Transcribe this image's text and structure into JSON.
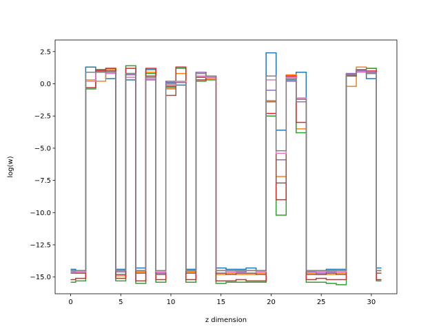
{
  "chart_data": {
    "type": "line",
    "drawstyle": "steps-mid",
    "title": "",
    "xlabel": "z dimension",
    "ylabel": "log(w)",
    "xlim": [
      -1.55,
      32.55
    ],
    "ylim": [
      -16.3,
      3.4
    ],
    "xticks": [
      0,
      5,
      10,
      15,
      20,
      25,
      30
    ],
    "yticks": [
      2.5,
      0.0,
      -2.5,
      -5.0,
      -7.5,
      -10.0,
      -12.5,
      -15.0
    ],
    "ytick_labels": [
      "2.5",
      "0.0",
      "−2.5",
      "−5.0",
      "−7.5",
      "−10.0",
      "−12.5",
      "−15.0"
    ],
    "grid": false,
    "legend": false,
    "x": [
      0,
      1,
      2,
      3,
      4,
      5,
      6,
      7,
      8,
      9,
      10,
      11,
      12,
      13,
      14,
      15,
      16,
      17,
      18,
      19,
      20,
      21,
      22,
      23,
      24,
      25,
      26,
      27,
      28,
      29,
      30,
      31
    ],
    "series": [
      {
        "color": "#1f77b4",
        "values": [
          -14.4,
          -14.5,
          1.3,
          1.0,
          0.4,
          -14.4,
          0.3,
          -14.3,
          1.1,
          -14.6,
          0.1,
          -0.1,
          -14.4,
          0.9,
          0.6,
          -14.3,
          -14.4,
          -14.4,
          -14.3,
          -14.5,
          2.4,
          -3.6,
          0.3,
          0.9,
          -14.5,
          -14.5,
          -14.4,
          -14.4,
          0.8,
          1.1,
          0.4,
          -14.3
        ]
      },
      {
        "color": "#ff7f0e",
        "values": [
          -14.6,
          -14.7,
          0.3,
          0.2,
          1.1,
          -14.9,
          0.8,
          -14.6,
          0.9,
          -14.7,
          -0.4,
          0.8,
          -14.6,
          0.5,
          0.4,
          -14.8,
          -14.7,
          -14.8,
          -14.8,
          -14.7,
          -1.3,
          -7.2,
          0.7,
          -3.5,
          -14.7,
          -14.8,
          -14.8,
          -14.7,
          -0.2,
          1.3,
          1.2,
          -14.5
        ]
      },
      {
        "color": "#2ca02c",
        "values": [
          -15.4,
          -15.3,
          -0.4,
          1.1,
          1.2,
          -15.3,
          1.4,
          -15.5,
          0.8,
          -15.4,
          -0.3,
          1.2,
          -15.4,
          0.2,
          0.3,
          -15.5,
          -15.4,
          -15.4,
          -15.4,
          -15.4,
          -2.5,
          -10.2,
          0.6,
          -3.8,
          -15.4,
          -15.4,
          -15.5,
          -15.6,
          0.6,
          1.0,
          1.2,
          -15.3
        ]
      },
      {
        "color": "#d62728",
        "values": [
          -15.2,
          -15.1,
          -0.3,
          1.0,
          1.2,
          -15.1,
          1.2,
          -15.3,
          1.2,
          -15.2,
          -0.2,
          1.3,
          -15.2,
          0.3,
          0.5,
          -15.3,
          -15.3,
          -15.2,
          -15.3,
          -15.3,
          -2.3,
          -9.0,
          0.6,
          -3.0,
          -15.2,
          -15.1,
          -15.2,
          -15.2,
          0.7,
          1.1,
          1.0,
          -15.2
        ]
      },
      {
        "color": "#9467bd",
        "values": [
          -14.6,
          -14.6,
          0.2,
          0.9,
          1.0,
          -14.6,
          0.7,
          -14.5,
          0.3,
          -14.7,
          0.2,
          0.2,
          -14.5,
          0.9,
          0.6,
          -14.5,
          -14.6,
          -14.6,
          -14.5,
          -14.6,
          -0.5,
          -5.9,
          0.2,
          -1.4,
          -14.6,
          -14.7,
          -14.6,
          -14.6,
          0.8,
          1.0,
          0.9,
          -14.5
        ]
      },
      {
        "color": "#8c564b",
        "values": [
          -14.7,
          -14.7,
          0.9,
          1.1,
          1.0,
          -14.8,
          0.8,
          -14.7,
          0.6,
          -14.8,
          -0.9,
          0.1,
          -14.7,
          0.5,
          0.5,
          -14.7,
          -14.8,
          -14.7,
          -14.7,
          -14.8,
          -1.4,
          -7.7,
          0.5,
          -1.2,
          -14.8,
          -14.8,
          -14.7,
          -14.8,
          0.6,
          0.9,
          0.8,
          -14.7
        ]
      },
      {
        "color": "#e377c2",
        "values": [
          -14.5,
          -14.6,
          0.2,
          0.9,
          0.8,
          -14.5,
          0.5,
          -14.5,
          0.4,
          -14.6,
          -0.1,
          0.2,
          -14.5,
          0.6,
          0.5,
          -14.5,
          -14.6,
          -14.5,
          -14.5,
          -14.6,
          0.3,
          -5.4,
          0.5,
          -1.1,
          -14.5,
          -14.6,
          -14.5,
          -14.6,
          0.7,
          0.9,
          0.8,
          -14.5
        ]
      },
      {
        "color": "#7f7f7f",
        "values": [
          -14.5,
          -14.5,
          0.9,
          0.9,
          0.9,
          -14.5,
          0.8,
          -14.5,
          0.5,
          -14.5,
          0.0,
          0.1,
          -14.5,
          0.8,
          0.6,
          -14.5,
          -14.5,
          -14.5,
          -14.5,
          -14.5,
          0.6,
          -5.2,
          0.4,
          -1.2,
          -14.5,
          -14.5,
          -14.5,
          -14.5,
          0.7,
          1.1,
          0.8,
          -14.5
        ]
      }
    ]
  }
}
